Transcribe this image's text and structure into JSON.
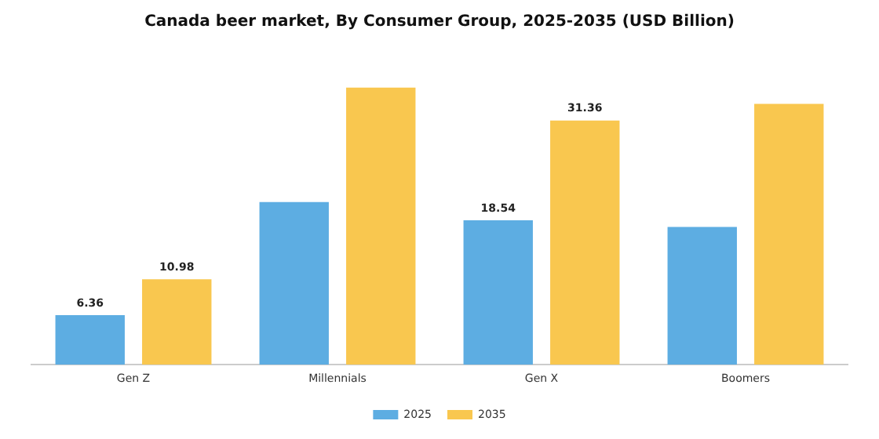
{
  "chart_data": {
    "type": "bar",
    "title": "Canada beer market, By Consumer Group, 2025-2035 (USD Billion)",
    "categories": [
      "Gen Z",
      "Millennials",
      "Gen X",
      "Boomers"
    ],
    "series": [
      {
        "name": "2025",
        "color": "#5dade2",
        "values": [
          6.36,
          20.9,
          18.54,
          17.7
        ],
        "value_labels": [
          "6.36",
          null,
          "18.54",
          null
        ]
      },
      {
        "name": "2035",
        "color": "#f9c74f",
        "values": [
          10.98,
          35.6,
          31.36,
          33.5
        ],
        "value_labels": [
          "10.98",
          null,
          "31.36",
          null
        ]
      }
    ],
    "legend": "bottom",
    "grid": false,
    "tick_labels": "x"
  }
}
